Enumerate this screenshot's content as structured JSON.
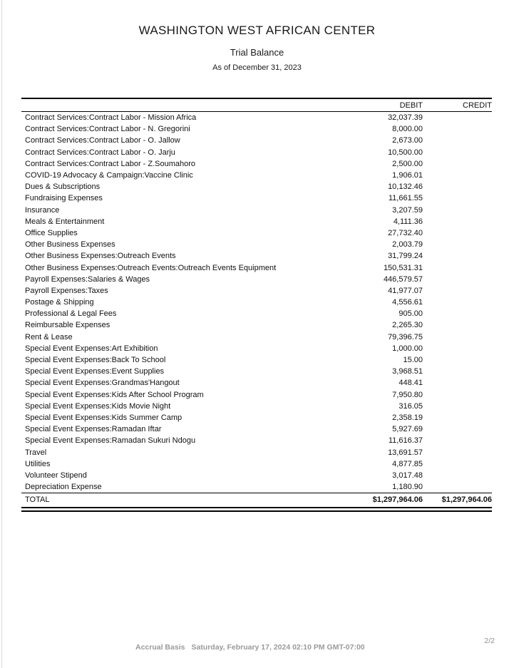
{
  "header": {
    "org_name": "WASHINGTON WEST AFRICAN CENTER",
    "report_title": "Trial Balance",
    "as_of": "As of December 31, 2023"
  },
  "table": {
    "columns": {
      "debit": "DEBIT",
      "credit": "CREDIT"
    },
    "rows": [
      {
        "account": "Contract Services:Contract Labor - Mission Africa",
        "debit": "32,037.39",
        "credit": ""
      },
      {
        "account": "Contract Services:Contract Labor - N. Gregorini",
        "debit": "8,000.00",
        "credit": ""
      },
      {
        "account": "Contract Services:Contract Labor - O. Jallow",
        "debit": "2,673.00",
        "credit": ""
      },
      {
        "account": "Contract Services:Contract Labor - O. Jarju",
        "debit": "10,500.00",
        "credit": ""
      },
      {
        "account": "Contract Services:Contract Labor - Z.Soumahoro",
        "debit": "2,500.00",
        "credit": ""
      },
      {
        "account": "COVID-19 Advocacy & Campaign:Vaccine Clinic",
        "debit": "1,906.01",
        "credit": ""
      },
      {
        "account": "Dues & Subscriptions",
        "debit": "10,132.46",
        "credit": ""
      },
      {
        "account": "Fundraising Expenses",
        "debit": "11,661.55",
        "credit": ""
      },
      {
        "account": "Insurance",
        "debit": "3,207.59",
        "credit": ""
      },
      {
        "account": "Meals & Entertainment",
        "debit": "4,111.36",
        "credit": ""
      },
      {
        "account": "Office Supplies",
        "debit": "27,732.40",
        "credit": ""
      },
      {
        "account": "Other Business Expenses",
        "debit": "2,003.79",
        "credit": ""
      },
      {
        "account": "Other Business Expenses:Outreach Events",
        "debit": "31,799.24",
        "credit": ""
      },
      {
        "account": "Other Business Expenses:Outreach Events:Outreach Events Equipment",
        "debit": "150,531.31",
        "credit": ""
      },
      {
        "account": "Payroll Expenses:Salaries & Wages",
        "debit": "446,579.57",
        "credit": ""
      },
      {
        "account": "Payroll Expenses:Taxes",
        "debit": "41,977.07",
        "credit": ""
      },
      {
        "account": "Postage & Shipping",
        "debit": "4,556.61",
        "credit": ""
      },
      {
        "account": "Professional & Legal Fees",
        "debit": "905.00",
        "credit": ""
      },
      {
        "account": "Reimbursable Expenses",
        "debit": "2,265.30",
        "credit": ""
      },
      {
        "account": "Rent & Lease",
        "debit": "79,396.75",
        "credit": ""
      },
      {
        "account": "Special Event Expenses:Art Exhibition",
        "debit": "1,000.00",
        "credit": ""
      },
      {
        "account": "Special Event Expenses:Back To School",
        "debit": "15.00",
        "credit": ""
      },
      {
        "account": "Special Event Expenses:Event Supplies",
        "debit": "3,968.51",
        "credit": ""
      },
      {
        "account": "Special Event Expenses:Grandmas'Hangout",
        "debit": "448.41",
        "credit": ""
      },
      {
        "account": "Special Event Expenses:Kids After School Program",
        "debit": "7,950.80",
        "credit": ""
      },
      {
        "account": "Special Event Expenses:Kids Movie Night",
        "debit": "316.05",
        "credit": ""
      },
      {
        "account": "Special Event Expenses:Kids Summer Camp",
        "debit": "2,358.19",
        "credit": ""
      },
      {
        "account": "Special Event Expenses:Ramadan Iftar",
        "debit": "5,927.69",
        "credit": ""
      },
      {
        "account": "Special Event Expenses:Ramadan Sukuri Ndogu",
        "debit": "11,616.37",
        "credit": ""
      },
      {
        "account": "Travel",
        "debit": "13,691.57",
        "credit": ""
      },
      {
        "account": "Utilities",
        "debit": "4,877.85",
        "credit": ""
      },
      {
        "account": "Volunteer Stipend",
        "debit": "3,017.48",
        "credit": ""
      },
      {
        "account": "Depreciation Expense",
        "debit": "1,180.90",
        "credit": ""
      }
    ],
    "total": {
      "label": "TOTAL",
      "debit": "$1,297,964.06",
      "credit": "$1,297,964.06"
    }
  },
  "footer": {
    "basis": "Accrual Basis",
    "timestamp": "Saturday, February 17, 2024 02:10 PM GMT-07:00",
    "page": "2/2"
  },
  "colors": {
    "text": "#1a1a1a",
    "line": "#000000",
    "footer_gray": "#9a9a9a",
    "page_edge": "#d9d9d9"
  }
}
